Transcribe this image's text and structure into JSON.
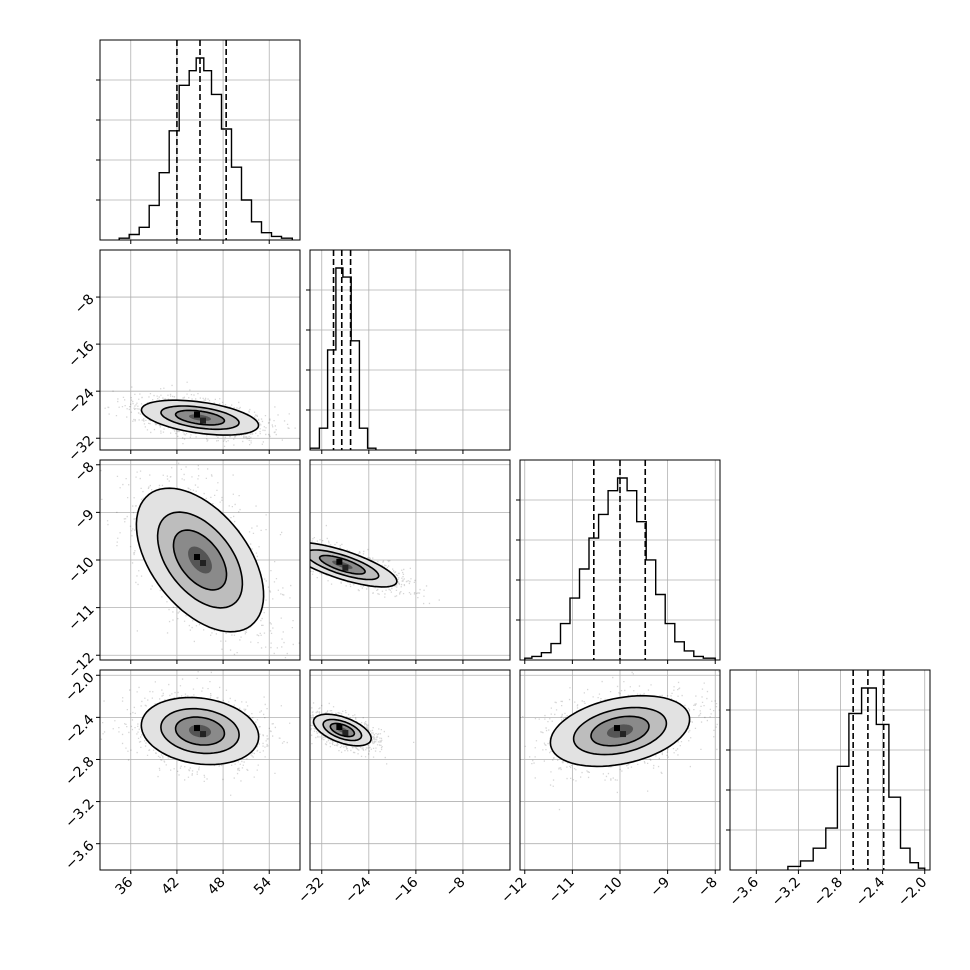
{
  "chart_data": {
    "type": "corner",
    "n_params": 4,
    "grid": true,
    "quantile_lines": "dashed",
    "params": [
      {
        "range": [
          32,
          58
        ],
        "ticks": [
          "36",
          "42",
          "48",
          "54"
        ],
        "median": 45.0,
        "q16": 42.0,
        "q84": 48.4
      },
      {
        "range": [
          -34,
          0
        ],
        "ticks": [
          "−32",
          "−24",
          "−16",
          "−8"
        ],
        "median": -28.6,
        "q16": -30.0,
        "q84": -27.1
      },
      {
        "range": [
          -12.1,
          -7.9
        ],
        "ticks": [
          "−12",
          "−11",
          "−10",
          "−9",
          "−8"
        ],
        "median": -10.0,
        "q16": -10.55,
        "q84": -9.47
      },
      {
        "range": [
          -3.85,
          -1.95
        ],
        "ticks": [
          "−3.6",
          "−3.2",
          "−2.8",
          "−2.4",
          "−2.0"
        ],
        "median": -2.54,
        "q16": -2.68,
        "q84": -2.39
      }
    ],
    "y_ticks": {
      "1": [
        "−8",
        "−16",
        "−24",
        "−32"
      ],
      "2": [
        "−8",
        "−9",
        "−10",
        "−11",
        "−12"
      ],
      "3": [
        "−2.0",
        "−2.4",
        "−2.8",
        "−3.2",
        "−3.6"
      ]
    },
    "histograms": [
      {
        "param": 0,
        "bins": [
          [
            34.5,
            35.8,
            0.01
          ],
          [
            35.8,
            37.1,
            0.03
          ],
          [
            37.1,
            38.4,
            0.07
          ],
          [
            38.4,
            39.7,
            0.19
          ],
          [
            39.7,
            41.0,
            0.37
          ],
          [
            41.0,
            42.3,
            0.6
          ],
          [
            42.3,
            43.6,
            0.85
          ],
          [
            43.6,
            44.5,
            0.93
          ],
          [
            44.5,
            45.5,
            1.0
          ],
          [
            45.5,
            46.5,
            0.93
          ],
          [
            46.5,
            47.8,
            0.8
          ],
          [
            47.8,
            49.1,
            0.61
          ],
          [
            49.1,
            50.4,
            0.4
          ],
          [
            50.4,
            51.7,
            0.22
          ],
          [
            51.7,
            53.0,
            0.1
          ],
          [
            53.0,
            54.3,
            0.04
          ],
          [
            54.3,
            55.6,
            0.02
          ],
          [
            55.6,
            57.0,
            0.01
          ]
        ]
      },
      {
        "param": 1,
        "bins": [
          [
            -34,
            -32.4,
            0.01
          ],
          [
            -32.4,
            -31.0,
            0.12
          ],
          [
            -31.0,
            -29.6,
            0.55
          ],
          [
            -29.6,
            -28.4,
            1.0
          ],
          [
            -28.4,
            -27.0,
            0.95
          ],
          [
            -27.0,
            -25.6,
            0.6
          ],
          [
            -25.6,
            -24.2,
            0.12
          ],
          [
            -24.2,
            -22.8,
            0.01
          ]
        ]
      },
      {
        "param": 2,
        "bins": [
          [
            -12.0,
            -11.85,
            0.01
          ],
          [
            -11.85,
            -11.65,
            0.02
          ],
          [
            -11.65,
            -11.45,
            0.04
          ],
          [
            -11.45,
            -11.25,
            0.09
          ],
          [
            -11.25,
            -11.05,
            0.2
          ],
          [
            -11.05,
            -10.85,
            0.34
          ],
          [
            -10.85,
            -10.65,
            0.5
          ],
          [
            -10.65,
            -10.45,
            0.67
          ],
          [
            -10.45,
            -10.25,
            0.8
          ],
          [
            -10.25,
            -10.05,
            0.93
          ],
          [
            -10.05,
            -9.85,
            1.0
          ],
          [
            -9.85,
            -9.65,
            0.93
          ],
          [
            -9.65,
            -9.45,
            0.76
          ],
          [
            -9.45,
            -9.25,
            0.55
          ],
          [
            -9.25,
            -9.05,
            0.36
          ],
          [
            -9.05,
            -8.85,
            0.2
          ],
          [
            -8.85,
            -8.65,
            0.1
          ],
          [
            -8.65,
            -8.45,
            0.05
          ],
          [
            -8.45,
            -8.25,
            0.02
          ],
          [
            -8.25,
            -8.0,
            0.01
          ]
        ]
      },
      {
        "param": 3,
        "bins": [
          [
            -3.3,
            -3.18,
            0.02
          ],
          [
            -3.18,
            -3.06,
            0.05
          ],
          [
            -3.06,
            -2.94,
            0.12
          ],
          [
            -2.94,
            -2.83,
            0.23
          ],
          [
            -2.83,
            -2.72,
            0.57
          ],
          [
            -2.72,
            -2.6,
            0.86
          ],
          [
            -2.6,
            -2.46,
            1.0
          ],
          [
            -2.46,
            -2.34,
            0.8
          ],
          [
            -2.34,
            -2.23,
            0.4
          ],
          [
            -2.23,
            -2.14,
            0.12
          ],
          [
            -2.14,
            -2.06,
            0.04
          ],
          [
            -2.06,
            -2.0,
            0.01
          ]
        ]
      }
    ],
    "contours": [
      {
        "row": 1,
        "col": 0,
        "cx": 45.0,
        "cy": -28.5,
        "sx": 3.2,
        "sy": 1.1,
        "angle": -8,
        "levels": [
          1.0,
          1.6,
          2.4
        ]
      },
      {
        "row": 2,
        "col": 0,
        "cx": 45.0,
        "cy": -10.0,
        "sx": 4.5,
        "sy": 0.42,
        "angle": -52,
        "levels": [
          1.0,
          1.6,
          2.4
        ]
      },
      {
        "row": 2,
        "col": 1,
        "cx": -28.5,
        "cy": -10.1,
        "sx": 1.0,
        "sy": 0.5,
        "angle": 72,
        "levels": [
          1.0,
          1.6,
          2.4
        ]
      },
      {
        "row": 3,
        "col": 0,
        "cx": 45.0,
        "cy": -2.53,
        "sx": 3.2,
        "sy": 0.13,
        "angle": -8,
        "levels": [
          1.0,
          1.6,
          2.4
        ]
      },
      {
        "row": 3,
        "col": 1,
        "cx": -28.5,
        "cy": -2.52,
        "sx": 0.9,
        "sy": 0.12,
        "angle": 70,
        "levels": [
          1.0,
          1.6,
          2.4
        ]
      },
      {
        "row": 3,
        "col": 2,
        "cx": -10.0,
        "cy": -2.53,
        "sx": 0.62,
        "sy": 0.13,
        "angle": 12,
        "levels": [
          1.0,
          1.6,
          2.4
        ]
      }
    ]
  }
}
